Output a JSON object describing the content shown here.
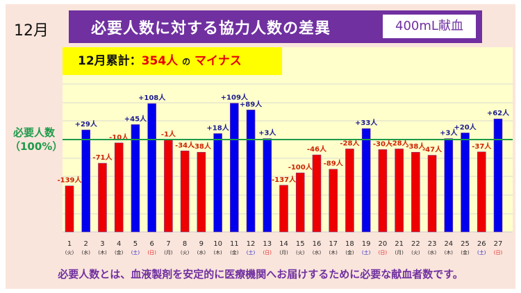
{
  "header": {
    "month": "12月",
    "title": "必要人数に対する協力人数の差異",
    "badge": "400mL献血"
  },
  "summary": {
    "label": "12月累計：",
    "value": "354人",
    "particle": "の",
    "direction": "マイナス"
  },
  "reference_line": {
    "label_line1": "必要人数",
    "label_line2": "（100%）"
  },
  "footer": "必要人数とは、血液製剤を安定的に医療機関へお届けするために必要な献血者数です。",
  "colors": {
    "positive": "#0000ee",
    "negative": "#ee0000",
    "reference": "#1e9a4a",
    "saturday": "#2020c0",
    "sunday": "#e02020"
  },
  "chart_data": {
    "type": "bar",
    "title": "必要人数に対する協力人数の差異",
    "categories": [
      "1",
      "2",
      "3",
      "4",
      "5",
      "6",
      "7",
      "8",
      "9",
      "10",
      "11",
      "12",
      "13",
      "14",
      "15",
      "16",
      "17",
      "18",
      "19",
      "20",
      "21",
      "22",
      "23",
      "24",
      "25",
      "26",
      "27"
    ],
    "weekdays": [
      "(火)",
      "(水)",
      "(木)",
      "(金)",
      "(土)",
      "(日)",
      "(月)",
      "(火)",
      "(水)",
      "(木)",
      "(金)",
      "(土)",
      "(日)",
      "(月)",
      "(火)",
      "(水)",
      "(木)",
      "(金)",
      "(土)",
      "(日)",
      "(月)",
      "(火)",
      "(水)",
      "(木)",
      "(金)",
      "(土)",
      "(日)"
    ],
    "values": [
      -139,
      29,
      -71,
      -10,
      45,
      108,
      -1,
      -34,
      -38,
      18,
      109,
      89,
      3,
      -137,
      -100,
      -46,
      -89,
      -28,
      33,
      -30,
      -28,
      -38,
      -47,
      3,
      20,
      -37,
      62
    ],
    "labels": [
      "-139人",
      "+29人",
      "-71人",
      "-10人",
      "+45人",
      "+108人",
      "-1人",
      "-34人",
      "-38人",
      "+18人",
      "+109人",
      "+89人",
      "+3人",
      "-137人",
      "-100人",
      "-46人",
      "-89人",
      "-28人",
      "+33人",
      "-30人",
      "-28人",
      "-38人",
      "-47人",
      "+3人",
      "+20人",
      "-37人",
      "+62人"
    ],
    "unit": "人",
    "reference": 0,
    "ylim": [
      -280,
      240
    ]
  }
}
